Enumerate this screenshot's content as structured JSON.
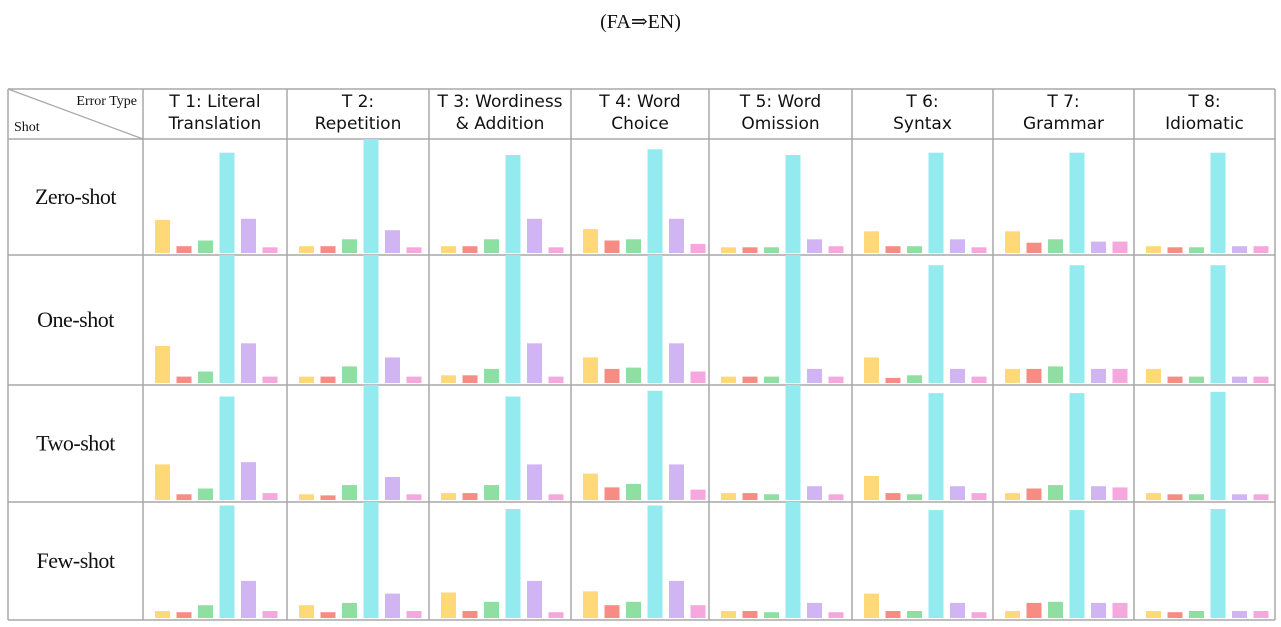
{
  "title": "(FA⇒EN)",
  "corner": {
    "top_right": "Error Type",
    "bottom_left": "Shot"
  },
  "colors": [
    "#ffd978",
    "#f68c83",
    "#8fdfa3",
    "#93ebef",
    "#d1b5f3",
    "#f5a7de"
  ],
  "chart_data": {
    "type": "bar",
    "layout": "small-multiples grid (rows = shot settings, columns = error types); 6 unlabeled bars per cell, no axes or tick labels",
    "ylim": [
      0,
      100
    ],
    "columns": [
      [
        "T 1: Literal",
        "Translation"
      ],
      [
        "T 2:",
        "Repetition"
      ],
      [
        "T 3: Wordiness",
        "& Addition"
      ],
      [
        "T 4: Word",
        "Choice"
      ],
      [
        "T 5: Word",
        "Omission"
      ],
      [
        "T 6:",
        "Syntax"
      ],
      [
        "T 7:",
        "Grammar"
      ],
      [
        "T 8:",
        "Idiomatic"
      ]
    ],
    "rows": [
      "Zero-shot",
      "One-shot",
      "Two-shot",
      "Few-shot"
    ],
    "values": [
      [
        [
          29,
          6,
          11,
          88,
          30,
          5
        ],
        [
          6,
          6,
          12,
          100,
          20,
          5
        ],
        [
          6,
          6,
          12,
          86,
          30,
          5
        ],
        [
          21,
          11,
          12,
          91,
          30,
          8
        ],
        [
          5,
          5,
          5,
          86,
          12,
          6
        ],
        [
          19,
          6,
          6,
          88,
          12,
          5
        ],
        [
          19,
          9,
          12,
          88,
          10,
          10
        ],
        [
          6,
          5,
          5,
          88,
          6,
          6
        ]
      ],
      [
        [
          29,
          5,
          9,
          100,
          31,
          5
        ],
        [
          5,
          5,
          13,
          104,
          20,
          5
        ],
        [
          6,
          6,
          11,
          101,
          31,
          5
        ],
        [
          20,
          11,
          12,
          100,
          31,
          9
        ],
        [
          5,
          5,
          5,
          101,
          11,
          5
        ],
        [
          20,
          4,
          6,
          92,
          11,
          5
        ],
        [
          11,
          11,
          13,
          92,
          11,
          11
        ],
        [
          11,
          5,
          5,
          92,
          5,
          5
        ]
      ],
      [
        [
          31,
          5,
          10,
          90,
          33,
          6
        ],
        [
          5,
          4,
          13,
          100,
          20,
          5
        ],
        [
          6,
          6,
          13,
          90,
          31,
          5
        ],
        [
          23,
          11,
          14,
          95,
          31,
          9
        ],
        [
          6,
          6,
          5,
          104,
          12,
          5
        ],
        [
          21,
          6,
          5,
          93,
          12,
          6
        ],
        [
          6,
          10,
          13,
          93,
          12,
          11
        ],
        [
          6,
          5,
          5,
          94,
          5,
          5
        ]
      ],
      [
        [
          6,
          5,
          11,
          97,
          32,
          6
        ],
        [
          11,
          5,
          13,
          102,
          21,
          6
        ],
        [
          22,
          6,
          14,
          94,
          32,
          5
        ],
        [
          23,
          11,
          14,
          97,
          32,
          11
        ],
        [
          6,
          6,
          5,
          104,
          13,
          5
        ],
        [
          21,
          6,
          6,
          93,
          13,
          5
        ],
        [
          6,
          13,
          14,
          93,
          13,
          13
        ],
        [
          6,
          5,
          6,
          94,
          6,
          6
        ]
      ]
    ]
  }
}
